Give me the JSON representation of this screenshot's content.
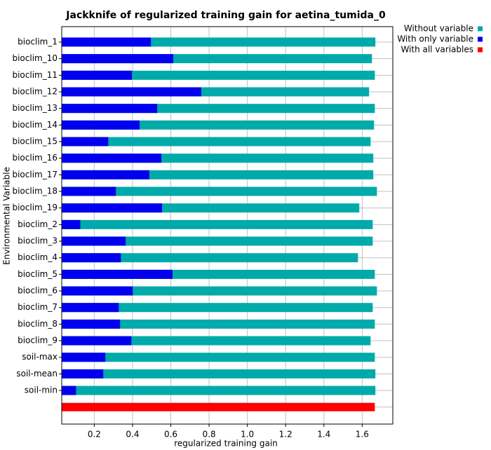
{
  "chart_data": {
    "type": "bar",
    "orientation": "horizontal",
    "title": "Jackknife of regularized training gain for aetina_tumida_0",
    "x_label": "regularized training gain",
    "y_label": "Environmental Variable",
    "categories": [
      "bioclim_1",
      "bioclim_10",
      "bioclim_11",
      "bioclim_12",
      "bioclim_13",
      "bioclim_14",
      "bioclim_15",
      "bioclim_16",
      "bioclim_17",
      "bioclim_18",
      "bioclim_19",
      "bioclim_2",
      "bioclim_3",
      "bioclim_4",
      "bioclim_5",
      "bioclim_6",
      "bioclim_7",
      "bioclim_8",
      "bioclim_9",
      "soil-max",
      "soil-mean",
      "soil-min",
      null
    ],
    "series": [
      {
        "name": "Without variable",
        "color": "#00aaaa",
        "values": [
          1.669,
          1.651,
          1.666,
          1.636,
          1.666,
          1.662,
          1.644,
          1.658,
          1.658,
          1.677,
          1.585,
          1.655,
          1.655,
          1.578,
          1.666,
          1.677,
          1.655,
          1.666,
          1.644,
          1.666,
          1.669,
          1.669,
          null
        ]
      },
      {
        "name": "With only variable",
        "color": "#0000ee",
        "values": [
          0.496,
          0.613,
          0.397,
          0.759,
          0.529,
          0.437,
          0.273,
          0.551,
          0.488,
          0.313,
          0.554,
          0.127,
          0.364,
          0.339,
          0.609,
          0.401,
          0.328,
          0.335,
          0.394,
          0.258,
          0.247,
          0.105,
          null
        ]
      },
      {
        "name": "With all variables",
        "color": "#ff0000",
        "values": [
          null,
          null,
          null,
          null,
          null,
          null,
          null,
          null,
          null,
          null,
          null,
          null,
          null,
          null,
          null,
          null,
          null,
          null,
          null,
          null,
          null,
          null,
          1.666
        ]
      }
    ],
    "xlim": [
      0.03,
      1.76
    ],
    "xticks": [
      0.2,
      0.4,
      0.6,
      0.8,
      {
        "value": 1,
        "label": "1.0"
      },
      1.2,
      1.4,
      1.6
    ],
    "grid": true,
    "legend": "upper right"
  }
}
